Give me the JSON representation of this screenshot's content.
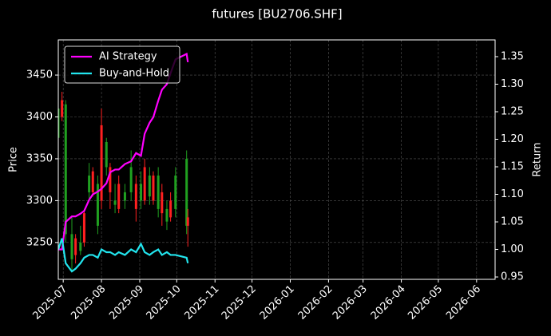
{
  "chart_data": {
    "type": "candlestick",
    "title": "futures [BU2706.SHF]",
    "ylabel": "Price",
    "y2label": "Return",
    "x": [
      "2025-06-27",
      "2025-06-30",
      "2025-07-03",
      "2025-07-08",
      "2025-07-11",
      "2025-07-15",
      "2025-07-18",
      "2025-07-22",
      "2025-07-25",
      "2025-07-29",
      "2025-08-01",
      "2025-08-05",
      "2025-08-08",
      "2025-08-12",
      "2025-08-15",
      "2025-08-20",
      "2025-08-25",
      "2025-08-29",
      "2025-09-02",
      "2025-09-05",
      "2025-09-09",
      "2025-09-12",
      "2025-09-16",
      "2025-09-19",
      "2025-09-23",
      "2025-09-26",
      "2025-09-30",
      "2025-10-09",
      "2025-10-10"
    ],
    "open": [
      3410,
      3400,
      3415,
      3260,
      3235,
      3250,
      3250,
      3330,
      3310,
      3320,
      3300,
      3370,
      3310,
      3300,
      3290,
      3310,
      3340,
      3290,
      3320,
      3300,
      3330,
      3300,
      3330,
      3285,
      3290,
      3280,
      3330,
      3350,
      3270
    ],
    "high": [
      3420,
      3430,
      3420,
      3280,
      3260,
      3270,
      3290,
      3345,
      3340,
      3330,
      3410,
      3375,
      3345,
      3320,
      3330,
      3320,
      3360,
      3330,
      3335,
      3350,
      3340,
      3335,
      3340,
      3320,
      3300,
      3310,
      3340,
      3360,
      3290
    ],
    "low": [
      3370,
      3395,
      3250,
      3215,
      3225,
      3235,
      3245,
      3300,
      3305,
      3260,
      3290,
      3330,
      3290,
      3285,
      3285,
      3290,
      3300,
      3275,
      3290,
      3295,
      3295,
      3295,
      3280,
      3270,
      3265,
      3275,
      3280,
      3260,
      3245
    ],
    "close": [
      3375,
      3420,
      3260,
      3230,
      3255,
      3240,
      3285,
      3310,
      3335,
      3270,
      3390,
      3340,
      3340,
      3295,
      3320,
      3300,
      3310,
      3320,
      3300,
      3340,
      3305,
      3330,
      3290,
      3310,
      3275,
      3300,
      3290,
      3270,
      3280
    ],
    "up_color": "#ff2020",
    "down_color": "#20a020",
    "series": [
      {
        "name": "AI Strategy",
        "color": "#ff00ff",
        "axis": "y2",
        "values": [
          1.0,
          1.0,
          1.05,
          1.06,
          1.06,
          1.065,
          1.07,
          1.09,
          1.1,
          1.105,
          1.11,
          1.12,
          1.14,
          1.145,
          1.145,
          1.155,
          1.16,
          1.175,
          1.17,
          1.21,
          1.23,
          1.24,
          1.27,
          1.29,
          1.3,
          1.32,
          1.345,
          1.355,
          1.34
        ]
      },
      {
        "name": "Buy-and-Hold",
        "color": "#22e5ee",
        "axis": "y2",
        "values": [
          1.0,
          1.02,
          0.975,
          0.96,
          0.965,
          0.975,
          0.985,
          0.99,
          0.99,
          0.985,
          1.0,
          0.995,
          0.995,
          0.99,
          0.995,
          0.99,
          1.0,
          0.995,
          1.01,
          0.995,
          0.99,
          0.995,
          1.0,
          0.99,
          0.995,
          0.99,
          0.99,
          0.985,
          0.975
        ]
      }
    ],
    "xlim": [
      "2025-06-27",
      "2026-06-16"
    ],
    "xticks": [
      {
        "value": "2025-07-01",
        "label": "2025-07"
      },
      {
        "value": "2025-08-01",
        "label": "2025-08"
      },
      {
        "value": "2025-09-01",
        "label": "2025-09"
      },
      {
        "value": "2025-10-01",
        "label": "2025-10"
      },
      {
        "value": "2025-11-01",
        "label": "2025-11"
      },
      {
        "value": "2025-12-01",
        "label": "2025-12"
      },
      {
        "value": "2026-01-01",
        "label": "2026-01"
      },
      {
        "value": "2026-02-01",
        "label": "2026-02"
      },
      {
        "value": "2026-03-01",
        "label": "2026-03"
      },
      {
        "value": "2026-04-01",
        "label": "2026-04"
      },
      {
        "value": "2026-05-01",
        "label": "2026-05"
      },
      {
        "value": "2026-06-01",
        "label": "2026-06"
      }
    ],
    "ylim": [
      3206,
      3492
    ],
    "yticks": [
      3250,
      3300,
      3350,
      3400,
      3450
    ],
    "y2lim": [
      0.9457,
      1.3804
    ],
    "y2ticks": [
      0.95,
      {
        "value": 1.0,
        "label": "1.00"
      },
      1.05,
      {
        "value": 1.1,
        "label": "1.10"
      },
      1.15,
      {
        "value": 1.2,
        "label": "1.20"
      },
      1.25,
      {
        "value": 1.3,
        "label": "1.30"
      },
      1.35
    ],
    "grid": true,
    "legend": "upper left"
  }
}
